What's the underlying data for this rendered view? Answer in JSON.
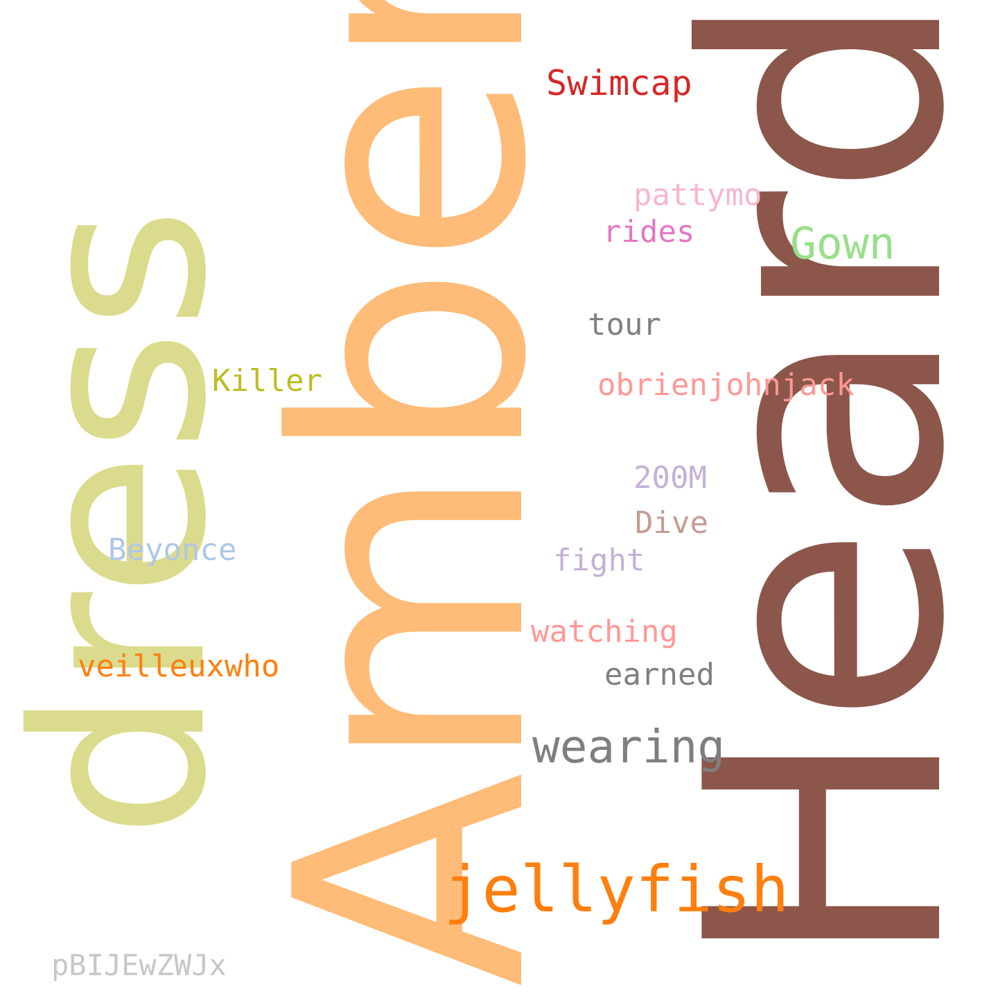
{
  "words": [
    {
      "id": "heard",
      "text": "Heard",
      "color": "#8c564b"
    },
    {
      "id": "amber",
      "text": "Amber",
      "color": "#ffbb78"
    },
    {
      "id": "dress",
      "text": "dress",
      "color": "#dbdb8d"
    },
    {
      "id": "jellyfish",
      "text": "jellyfish",
      "color": "#ff7f0e"
    },
    {
      "id": "wearing",
      "text": "wearing",
      "color": "#7f7f7f"
    },
    {
      "id": "swimcap",
      "text": "Swimcap",
      "color": "#d62728"
    },
    {
      "id": "gown",
      "text": "Gown",
      "color": "#98df8a"
    },
    {
      "id": "pattymo",
      "text": "pattymo",
      "color": "#f7b6d2"
    },
    {
      "id": "rides",
      "text": "rides",
      "color": "#e377c2"
    },
    {
      "id": "tour",
      "text": "tour",
      "color": "#7f7f7f"
    },
    {
      "id": "obrienjohnjack",
      "text": "obrienjohnjack",
      "color": "#ff9896"
    },
    {
      "id": "killer",
      "text": "Killer",
      "color": "#bcbd22"
    },
    {
      "id": "200m",
      "text": "200M",
      "color": "#c5b0d5"
    },
    {
      "id": "dive",
      "text": "Dive",
      "color": "#c49c94"
    },
    {
      "id": "beyonce",
      "text": "Beyonce",
      "color": "#aec7e8"
    },
    {
      "id": "fight",
      "text": "fight",
      "color": "#c5b0d5"
    },
    {
      "id": "watching",
      "text": "watching",
      "color": "#ff9896"
    },
    {
      "id": "veilleuxwho",
      "text": "veilleuxwho",
      "color": "#ff7f0e"
    },
    {
      "id": "earned",
      "text": "earned",
      "color": "#7f7f7f"
    },
    {
      "id": "pbijewzwjx",
      "text": "pBIJEwZWJx",
      "color": "#c7c7c7"
    }
  ]
}
